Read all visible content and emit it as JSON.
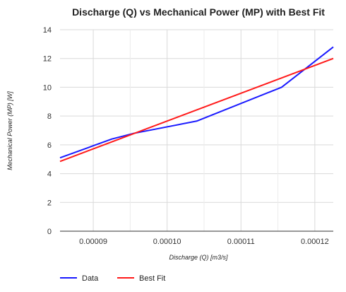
{
  "chart_data": {
    "type": "line",
    "title": "Discharge (Q) vs Mechanical Power (MP) with Best Fit",
    "xlabel": "Discharge (Q) [m3/s]",
    "ylabel": "Mechanical Power (MP) [W]",
    "xlim": [
      8.55e-05,
      0.0001225
    ],
    "ylim": [
      0,
      14
    ],
    "x_ticks": [
      9e-05,
      0.0001,
      0.00011,
      0.00012
    ],
    "x_tick_labels": [
      "0.00009",
      "0.00010",
      "0.00011",
      "0.00012"
    ],
    "y_ticks": [
      0,
      2,
      4,
      6,
      8,
      10,
      12,
      14
    ],
    "y_tick_labels": [
      "0",
      "2",
      "4",
      "6",
      "8",
      "10",
      "12",
      "14"
    ],
    "grid": true,
    "legend_position": "bottom-left",
    "series": [
      {
        "name": "Data",
        "color": "#1a1aff",
        "x": [
          8.55e-05,
          9.25e-05,
          9.55e-05,
          0.000104,
          0.0001155,
          0.0001225
        ],
        "y": [
          5.1,
          6.4,
          6.8,
          7.65,
          10.0,
          12.8
        ]
      },
      {
        "name": "Best Fit",
        "color": "#ff1a1a",
        "x": [
          8.55e-05,
          0.0001225
        ],
        "y": [
          4.85,
          12.0
        ]
      }
    ]
  }
}
